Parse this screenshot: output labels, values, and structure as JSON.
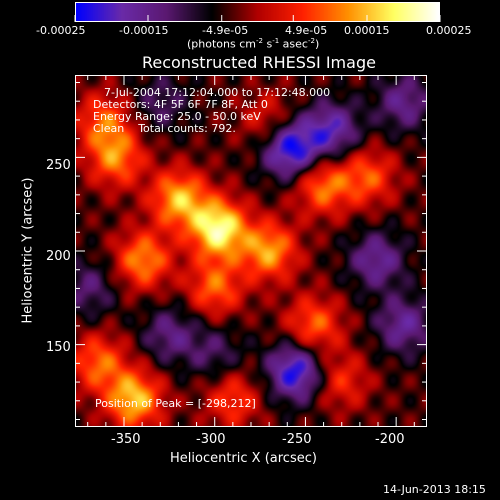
{
  "colorbar": {
    "tick_labels": [
      "-0.00025",
      "-0.00015",
      "-4.9e-05",
      "4.9e-05",
      "0.00015",
      "0.00025"
    ],
    "tick_values": [
      -0.00025,
      -0.00015,
      -4.9e-05,
      4.9e-05,
      0.00015,
      0.00025
    ],
    "unit_label": "(photons cm",
    "unit_sup1": "-2",
    "unit_mid1": " s",
    "unit_sup2": "-1",
    "unit_mid2": " asec",
    "unit_sup3": "-2",
    "unit_end": ")"
  },
  "image": {
    "title": "Reconstructed RHESSI Image",
    "info_line1": "7-Jul-2004 17:12:04.000 to 17:12:48.000",
    "info_line2": "Detectors: 4F 5F 6F 7F 8F, Att 0",
    "info_line3": "Energy Range: 25.0 - 50.0 keV",
    "info_line4": "Clean    Total counts: 792.",
    "peak_label": "Position of Peak = [-298,212]",
    "xlabel": "Heliocentric X (arcsec)",
    "ylabel": "Heliocentric Y (arcsec)",
    "x_tick_labels": [
      "-350",
      "-300",
      "-250",
      "-200"
    ],
    "y_tick_labels": [
      "250",
      "200",
      "150"
    ],
    "date_stamp": "14-Jun-2013 18:15"
  },
  "chart_data": {
    "type": "heatmap",
    "title": "Reconstructed RHESSI Image",
    "xlabel": "Heliocentric X (arcsec)",
    "ylabel": "Heliocentric Y (arcsec)",
    "xlim": [
      -377,
      -183
    ],
    "ylim": [
      106,
      294
    ],
    "colorscale": [
      "#0000ff",
      "#6a2aa8",
      "#5a1870",
      "#000000",
      "#b00000",
      "#ff2000",
      "#ff9000",
      "#ffff60",
      "#ffffff"
    ],
    "peak": [
      -298,
      212
    ],
    "zones": [
      {
        "x": -298,
        "y": 212,
        "level": 1.0
      },
      {
        "x": -320,
        "y": 228,
        "level": 0.75
      },
      {
        "x": -270,
        "y": 200,
        "level": 0.7
      },
      {
        "x": -340,
        "y": 195,
        "level": 0.65
      },
      {
        "x": -300,
        "y": 180,
        "level": 0.55
      },
      {
        "x": -355,
        "y": 250,
        "level": 0.6
      },
      {
        "x": -362,
        "y": 270,
        "level": 0.5
      },
      {
        "x": -345,
        "y": 120,
        "level": 0.8
      },
      {
        "x": -365,
        "y": 140,
        "level": 0.55
      },
      {
        "x": -240,
        "y": 235,
        "level": 0.6
      },
      {
        "x": -215,
        "y": 240,
        "level": 0.5
      },
      {
        "x": -245,
        "y": 160,
        "level": 0.55
      },
      {
        "x": -290,
        "y": 120,
        "level": 0.45
      },
      {
        "x": -230,
        "y": 130,
        "level": 0.4
      },
      {
        "x": -270,
        "y": 270,
        "level": 0.35
      },
      {
        "x": -258,
        "y": 255,
        "level": -0.85
      },
      {
        "x": -235,
        "y": 265,
        "level": -0.6
      },
      {
        "x": -195,
        "y": 160,
        "level": -0.5
      },
      {
        "x": -255,
        "y": 135,
        "level": -0.8
      },
      {
        "x": -325,
        "y": 155,
        "level": -0.4
      },
      {
        "x": -195,
        "y": 280,
        "level": -0.45
      },
      {
        "x": -210,
        "y": 195,
        "level": -0.5
      },
      {
        "x": -330,
        "y": 280,
        "level": -0.3
      },
      {
        "x": -370,
        "y": 180,
        "level": -0.35
      },
      {
        "x": -300,
        "y": 145,
        "level": -0.3
      }
    ]
  }
}
